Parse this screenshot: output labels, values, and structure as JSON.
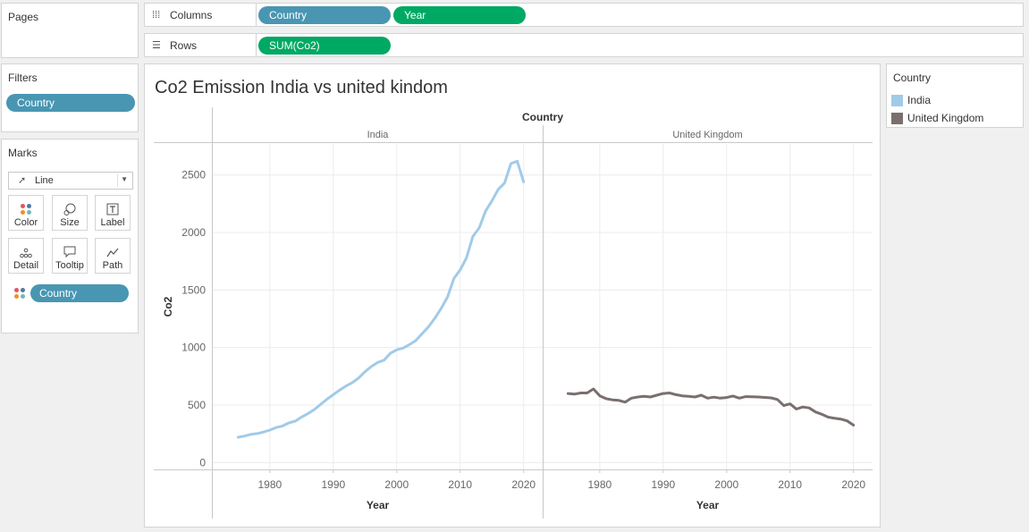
{
  "pages": {
    "title": "Pages"
  },
  "columns_shelf": {
    "label": "Columns",
    "pills": [
      "Country",
      "Year"
    ]
  },
  "rows_shelf": {
    "label": "Rows",
    "pills": [
      "SUM(Co2)"
    ]
  },
  "filters": {
    "title": "Filters",
    "pills": [
      "Country"
    ]
  },
  "marks": {
    "title": "Marks",
    "mark_type": "Line",
    "buttons": [
      "Color",
      "Size",
      "Label",
      "Detail",
      "Tooltip",
      "Path"
    ],
    "color_pill": "Country"
  },
  "legend": {
    "title": "Country",
    "items": [
      {
        "label": "India",
        "color": "#a0cbe8"
      },
      {
        "label": "United Kingdom",
        "color": "#79706e"
      }
    ]
  },
  "worksheet": {
    "title": "Co2 Emission India vs united kindom"
  },
  "chart_data": {
    "type": "line",
    "header_title": "Country",
    "panes": [
      "India",
      "United Kingdom"
    ],
    "xlabel": "Year",
    "ylabel": "Co2",
    "x_ticks": [
      1980,
      1990,
      2000,
      2010,
      2020
    ],
    "y_ticks": [
      0,
      500,
      1000,
      1500,
      2000,
      2500
    ],
    "xlim": [
      1971,
      2023
    ],
    "ylim": [
      -60,
      2770
    ],
    "grid": true,
    "series": [
      {
        "name": "India",
        "color": "#a0cbe8",
        "x": [
          1975,
          1976,
          1977,
          1978,
          1979,
          1980,
          1981,
          1982,
          1983,
          1984,
          1985,
          1986,
          1987,
          1988,
          1989,
          1990,
          1991,
          1992,
          1993,
          1994,
          1995,
          1996,
          1997,
          1998,
          1999,
          2000,
          2001,
          2002,
          2003,
          2004,
          2005,
          2006,
          2007,
          2008,
          2009,
          2010,
          2011,
          2012,
          2013,
          2014,
          2015,
          2016,
          2017,
          2018,
          2019,
          2020
        ],
        "y": [
          220,
          230,
          245,
          252,
          265,
          282,
          305,
          318,
          345,
          360,
          395,
          425,
          460,
          505,
          550,
          590,
          630,
          665,
          695,
          735,
          790,
          835,
          870,
          890,
          950,
          980,
          995,
          1025,
          1060,
          1120,
          1180,
          1255,
          1340,
          1440,
          1600,
          1675,
          1780,
          1965,
          2040,
          2185,
          2275,
          2375,
          2430,
          2600,
          2620,
          2440
        ]
      },
      {
        "name": "United Kingdom",
        "color": "#79706e",
        "x": [
          1975,
          1976,
          1977,
          1978,
          1979,
          1980,
          1981,
          1982,
          1983,
          1984,
          1985,
          1986,
          1987,
          1988,
          1989,
          1990,
          1991,
          1992,
          1993,
          1994,
          1995,
          1996,
          1997,
          1998,
          1999,
          2000,
          2001,
          2002,
          2003,
          2004,
          2005,
          2006,
          2007,
          2008,
          2009,
          2010,
          2011,
          2012,
          2013,
          2014,
          2015,
          2016,
          2017,
          2018,
          2019,
          2020
        ],
        "y": [
          600,
          595,
          605,
          605,
          640,
          580,
          555,
          545,
          540,
          525,
          560,
          570,
          575,
          570,
          585,
          600,
          605,
          590,
          580,
          575,
          570,
          585,
          560,
          568,
          560,
          565,
          578,
          560,
          573,
          572,
          570,
          566,
          562,
          548,
          495,
          510,
          465,
          483,
          475,
          440,
          420,
          395,
          385,
          378,
          362,
          325
        ]
      }
    ]
  }
}
